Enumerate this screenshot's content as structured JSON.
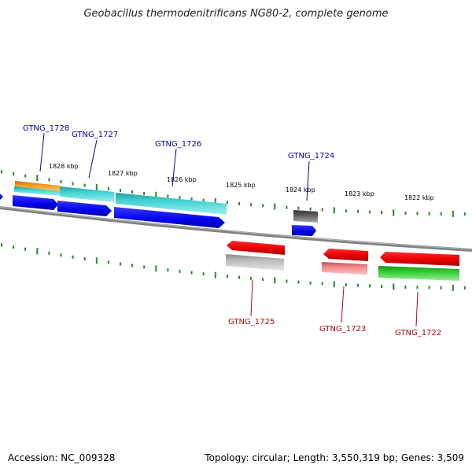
{
  "title": "Geobacillus thermodenitrificans NG80-2, complete genome",
  "scale_labels": [
    {
      "text": "1828 kbp"
    },
    {
      "text": "1827 kbp"
    },
    {
      "text": "1826 kbp"
    },
    {
      "text": "1825 kbp"
    },
    {
      "text": "1824 kbp"
    },
    {
      "text": "1823 kbp"
    },
    {
      "text": "1822 kbp"
    }
  ],
  "genes_top": [
    {
      "label": "GTNG_1728"
    },
    {
      "label": "GTNG_1727"
    },
    {
      "label": "GTNG_1726"
    },
    {
      "label": "GTNG_1724"
    }
  ],
  "genes_bottom": [
    {
      "label": "GTNG_1725"
    },
    {
      "label": "GTNG_1723"
    },
    {
      "label": "GTNG_1722"
    }
  ],
  "colors": {
    "top_label": "#0000cc",
    "bottom_label": "#cc0000",
    "backbone": "#808080",
    "ticks": "#228b22"
  },
  "footer": {
    "accession": "Accession: NC_009328",
    "summary": "Topology: circular; Length: 3,550,319 bp; Genes: 3,509"
  }
}
